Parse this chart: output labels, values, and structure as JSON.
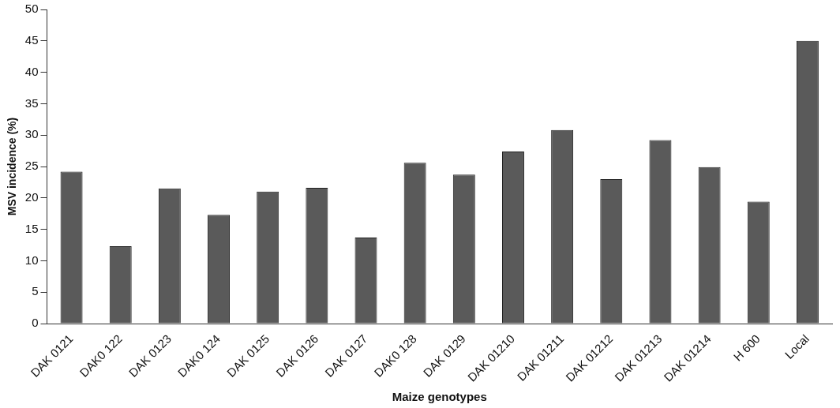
{
  "chart_data": {
    "type": "bar",
    "xlabel": "Maize genotypes",
    "ylabel": "MSV incidence (%)",
    "categories": [
      "DAK 0121",
      "DAK0 122",
      "DAK 0123",
      "DAK0 124",
      "DAK 0125",
      "DAK 0126",
      "DAK 0127",
      "DAK0 128",
      "DAK 0129",
      "DAK 01210",
      "DAK 01211",
      "DAK 01212",
      "DAK 01213",
      "DAK 01214",
      "H 600",
      "Local"
    ],
    "values": [
      24.2,
      12.3,
      21.5,
      17.3,
      21,
      21.6,
      13.7,
      25.6,
      23.7,
      27.4,
      30.8,
      23,
      29.2,
      24.9,
      19.4,
      45
    ],
    "color": "#5a5a5a",
    "ylim": [
      0,
      50
    ],
    "yticks": [
      0,
      5,
      10,
      15,
      20,
      25,
      30,
      35,
      40,
      45,
      50
    ],
    "grid": false
  }
}
